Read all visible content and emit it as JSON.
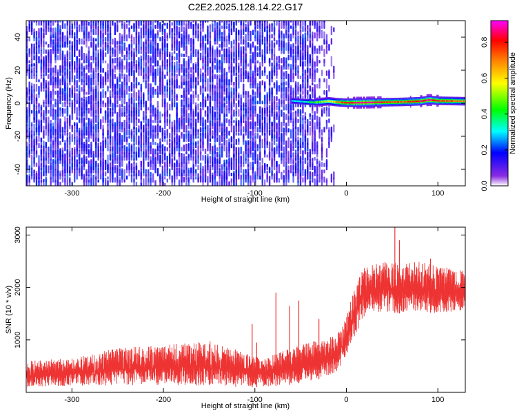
{
  "title": "C2E2.2025.128.14.22.G17",
  "chart_data": [
    {
      "type": "heatmap",
      "panel": "spectrogram",
      "xlabel": "Height of straight line (km)",
      "ylabel": "Frequency (Hz)",
      "xlim": [
        -350,
        130
      ],
      "ylim": [
        -50,
        50
      ],
      "xticks": [
        -300,
        -200,
        -100,
        0,
        100
      ],
      "yticks": [
        -40,
        -20,
        0,
        20,
        40
      ],
      "xtick_labels": [
        "-300",
        "-200",
        "-100",
        "0",
        "100"
      ],
      "ytick_labels": [
        "-40",
        "-20",
        "0",
        "20",
        "40"
      ],
      "noise_region_x": [
        -350,
        -12
      ],
      "noise_amplitude_range": [
        0.08,
        0.22
      ],
      "signal_band": {
        "x": [
          -60,
          -45,
          -35,
          -20,
          -10,
          0,
          20,
          40,
          60,
          80,
          90,
          100,
          130
        ],
        "center_hz": [
          1.5,
          0.8,
          0.5,
          1.2,
          0.6,
          0.3,
          0.4,
          0.6,
          0.8,
          1.2,
          2.0,
          1.5,
          1.2
        ],
        "peak_amplitude": [
          0.3,
          0.35,
          0.45,
          0.55,
          0.7,
          0.85,
          0.9,
          0.8,
          0.75,
          0.85,
          0.9,
          0.8,
          0.7
        ]
      },
      "colorbar": {
        "label": "Normalized spectral amplitude",
        "range": [
          0.0,
          0.92
        ],
        "ticks": [
          0.0,
          0.2,
          0.4,
          0.6,
          0.8
        ],
        "tick_labels": [
          "0.0",
          "0.2",
          "0.4",
          "0.6",
          "0.8"
        ],
        "colors": [
          "#ffffff",
          "#8a2be2",
          "#0000ff",
          "#00ffff",
          "#00ff00",
          "#ffff00",
          "#ff8000",
          "#ff0000",
          "#ff00ff"
        ]
      },
      "grid": false
    },
    {
      "type": "line",
      "panel": "snr",
      "xlabel": "Height of straight line (km)",
      "ylabel": "SNR (10 * v/v)",
      "xlim": [
        -350,
        130
      ],
      "ylim": [
        0,
        3150
      ],
      "xticks": [
        -300,
        -200,
        -100,
        0,
        100
      ],
      "yticks": [
        1000,
        2000,
        3000
      ],
      "xtick_labels": [
        "-300",
        "-200",
        "-100",
        "0",
        "100"
      ],
      "ytick_labels": [
        "1000",
        "2000",
        "3000"
      ],
      "series": [
        {
          "color": "#ee3333",
          "envelope": {
            "x": [
              -350,
              -300,
              -250,
              -200,
              -150,
              -110,
              -90,
              -60,
              -30,
              -10,
              0,
              10,
              20,
              40,
              60,
              80,
              100,
              130
            ],
            "low": [
              100,
              120,
              130,
              140,
              130,
              100,
              100,
              150,
              250,
              400,
              700,
              1100,
              1450,
              1550,
              1500,
              1550,
              1500,
              1550
            ],
            "high": [
              600,
              650,
              850,
              900,
              1000,
              750,
              650,
              850,
              1000,
              1100,
              1450,
              2050,
              2400,
              2500,
              2450,
              2500,
              2400,
              2350
            ]
          },
          "spikes": [
            {
              "x": -103,
              "y": 1300
            },
            {
              "x": -98,
              "y": 950
            },
            {
              "x": -77,
              "y": 1900
            },
            {
              "x": -62,
              "y": 1650
            },
            {
              "x": -52,
              "y": 1750
            },
            {
              "x": -30,
              "y": 1400
            },
            {
              "x": 53,
              "y": 3150
            },
            {
              "x": 58,
              "y": 2900
            },
            {
              "x": 92,
              "y": 2550
            }
          ]
        }
      ],
      "grid": false
    }
  ]
}
